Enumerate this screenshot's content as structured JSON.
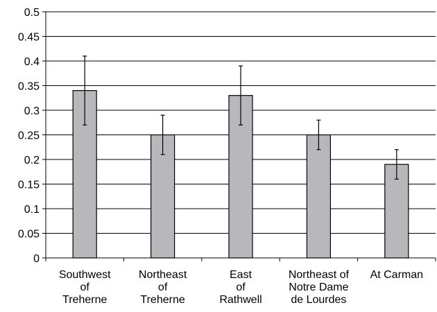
{
  "chart_data": {
    "type": "bar",
    "title": "",
    "xlabel": "",
    "ylabel": "",
    "ylim": [
      0,
      0.5
    ],
    "yticks": [
      "0",
      "0.05",
      "0.1",
      "0.15",
      "0.2",
      "0.25",
      "0.3",
      "0.35",
      "0.4",
      "0.45",
      "0.5"
    ],
    "grid": true,
    "categories": [
      [
        "Southwest",
        "of",
        "Treherne"
      ],
      [
        "Northeast",
        "of",
        "Treherne"
      ],
      [
        "East",
        "of",
        "Rathwell"
      ],
      [
        "Northeast of",
        "Notre Dame",
        "de Lourdes"
      ],
      [
        "At Carman"
      ]
    ],
    "values": [
      0.34,
      0.25,
      0.33,
      0.25,
      0.19
    ],
    "error_low": [
      0.27,
      0.21,
      0.27,
      0.22,
      0.16
    ],
    "error_high": [
      0.41,
      0.29,
      0.39,
      0.28,
      0.22
    ],
    "bar_color": "#b8b8bc",
    "bar_edge_color": "#000000"
  }
}
